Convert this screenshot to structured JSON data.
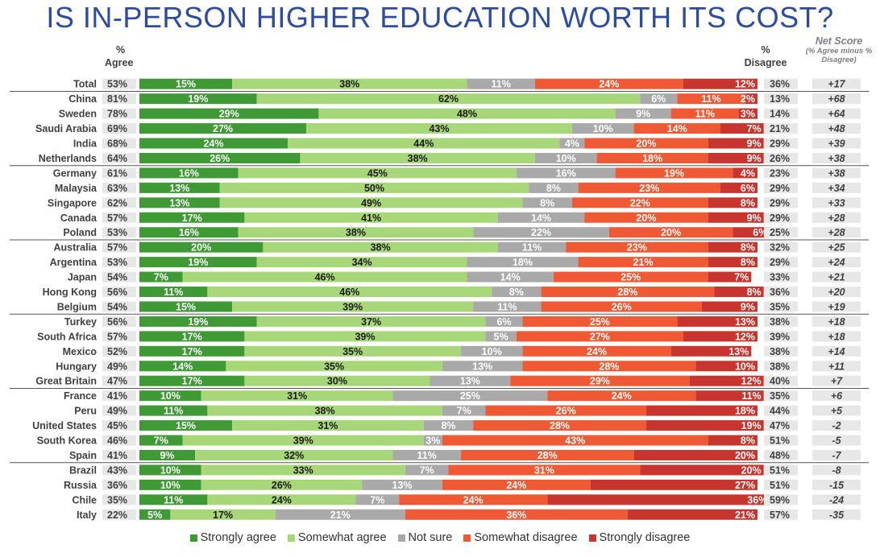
{
  "title": "IS IN-PERSON HIGHER EDUCATION WORTH ITS COST?",
  "headers": {
    "agree_pct": "%",
    "agree_word": "Agree",
    "disagree_pct": "%",
    "disagree_word": "Disagree",
    "net_title": "Net Score",
    "net_sub": "(% Agree minus % Disagree)"
  },
  "chart_data": {
    "type": "bar",
    "stacked": true,
    "orientation": "horizontal",
    "xlim": [
      0,
      100
    ],
    "legend_position": "bottom",
    "series": [
      {
        "name": "Strongly agree",
        "color": "#3F9A36"
      },
      {
        "name": "Somewhat agree",
        "color": "#A8D77A"
      },
      {
        "name": "Not sure",
        "color": "#A9A9A9"
      },
      {
        "name": "Somewhat disagree",
        "color": "#EF5A34"
      },
      {
        "name": "Strongly disagree",
        "color": "#C8352E"
      }
    ],
    "rows": [
      {
        "country": "Total",
        "agree": "53%",
        "values": [
          15,
          38,
          11,
          24,
          12
        ],
        "labels": [
          "15%",
          "38%",
          "11%",
          "24%",
          "12%"
        ],
        "disagree": "36%",
        "net": "+17"
      },
      {
        "country": "China",
        "agree": "81%",
        "values": [
          19,
          62,
          6,
          11,
          2
        ],
        "labels": [
          "19%",
          "62%",
          "6%",
          "11%",
          "2%"
        ],
        "disagree": "13%",
        "net": "+68"
      },
      {
        "country": "Sweden",
        "agree": "78%",
        "values": [
          29,
          48,
          9,
          11,
          3
        ],
        "labels": [
          "29%",
          "48%",
          "9%",
          "11%",
          "3%"
        ],
        "disagree": "14%",
        "net": "+64"
      },
      {
        "country": "Saudi Arabia",
        "agree": "69%",
        "values": [
          27,
          43,
          10,
          14,
          7
        ],
        "labels": [
          "27%",
          "43%",
          "10%",
          "14%",
          "7%"
        ],
        "disagree": "21%",
        "net": "+48"
      },
      {
        "country": "India",
        "agree": "68%",
        "values": [
          24,
          44,
          4,
          20,
          9
        ],
        "labels": [
          "24%",
          "44%",
          "4%",
          "20%",
          "9%"
        ],
        "disagree": "29%",
        "net": "+39"
      },
      {
        "country": "Netherlands",
        "agree": "64%",
        "values": [
          26,
          38,
          10,
          18,
          9
        ],
        "labels": [
          "26%",
          "38%",
          "10%",
          "18%",
          "9%"
        ],
        "disagree": "26%",
        "net": "+38"
      },
      {
        "country": "Germany",
        "agree": "61%",
        "values": [
          16,
          45,
          16,
          19,
          4
        ],
        "labels": [
          "16%",
          "45%",
          "16%",
          "19%",
          "4%"
        ],
        "disagree": "23%",
        "net": "+38"
      },
      {
        "country": "Malaysia",
        "agree": "63%",
        "values": [
          13,
          50,
          8,
          23,
          6
        ],
        "labels": [
          "13%",
          "50%",
          "8%",
          "23%",
          "6%"
        ],
        "disagree": "29%",
        "net": "+34"
      },
      {
        "country": "Singapore",
        "agree": "62%",
        "values": [
          13,
          49,
          8,
          22,
          8
        ],
        "labels": [
          "13%",
          "49%",
          "8%",
          "22%",
          "8%"
        ],
        "disagree": "29%",
        "net": "+33"
      },
      {
        "country": "Canada",
        "agree": "57%",
        "values": [
          17,
          41,
          14,
          20,
          9
        ],
        "labels": [
          "17%",
          "41%",
          "14%",
          "20%",
          "9%"
        ],
        "disagree": "29%",
        "net": "+28"
      },
      {
        "country": "Poland",
        "agree": "53%",
        "values": [
          16,
          38,
          22,
          20,
          6
        ],
        "labels": [
          "16%",
          "38%",
          "22%",
          "20%",
          "6%"
        ],
        "disagree": "25%",
        "net": "+28"
      },
      {
        "country": "Australia",
        "agree": "57%",
        "values": [
          20,
          38,
          11,
          23,
          8
        ],
        "labels": [
          "20%",
          "38%",
          "11%",
          "23%",
          "8%"
        ],
        "disagree": "32%",
        "net": "+25"
      },
      {
        "country": "Argentina",
        "agree": "53%",
        "values": [
          19,
          34,
          18,
          21,
          8
        ],
        "labels": [
          "19%",
          "34%",
          "18%",
          "21%",
          "8%"
        ],
        "disagree": "29%",
        "net": "+24"
      },
      {
        "country": "Japan",
        "agree": "54%",
        "values": [
          7,
          46,
          14,
          25,
          7
        ],
        "labels": [
          "7%",
          "46%",
          "14%",
          "25%",
          "7%"
        ],
        "disagree": "33%",
        "net": "+21"
      },
      {
        "country": "Hong Kong",
        "agree": "56%",
        "values": [
          11,
          46,
          8,
          28,
          8
        ],
        "labels": [
          "11%",
          "46%",
          "8%",
          "28%",
          "8%"
        ],
        "disagree": "36%",
        "net": "+20"
      },
      {
        "country": "Belgium",
        "agree": "54%",
        "values": [
          15,
          39,
          11,
          26,
          9
        ],
        "labels": [
          "15%",
          "39%",
          "11%",
          "26%",
          "9%"
        ],
        "disagree": "35%",
        "net": "+19"
      },
      {
        "country": "Turkey",
        "agree": "56%",
        "values": [
          19,
          37,
          6,
          25,
          13
        ],
        "labels": [
          "19%",
          "37%",
          "6%",
          "25%",
          "13%"
        ],
        "disagree": "38%",
        "net": "+18"
      },
      {
        "country": "South Africa",
        "agree": "57%",
        "values": [
          17,
          39,
          5,
          27,
          12
        ],
        "labels": [
          "17%",
          "39%",
          "5%",
          "27%",
          "12%"
        ],
        "disagree": "39%",
        "net": "+18"
      },
      {
        "country": "Mexico",
        "agree": "52%",
        "values": [
          17,
          35,
          10,
          24,
          13
        ],
        "labels": [
          "17%",
          "35%",
          "10%",
          "24%",
          "13%"
        ],
        "disagree": "38%",
        "net": "+14"
      },
      {
        "country": "Hungary",
        "agree": "49%",
        "values": [
          14,
          35,
          13,
          28,
          10
        ],
        "labels": [
          "14%",
          "35%",
          "13%",
          "28%",
          "10%"
        ],
        "disagree": "38%",
        "net": "+11"
      },
      {
        "country": "Great Britain",
        "agree": "47%",
        "values": [
          17,
          30,
          13,
          29,
          12
        ],
        "labels": [
          "17%",
          "30%",
          "13%",
          "29%",
          "12%"
        ],
        "disagree": "40%",
        "net": "+7"
      },
      {
        "country": "France",
        "agree": "41%",
        "values": [
          10,
          31,
          25,
          24,
          11
        ],
        "labels": [
          "10%",
          "31%",
          "25%",
          "24%",
          "11%"
        ],
        "disagree": "35%",
        "net": "+6"
      },
      {
        "country": "Peru",
        "agree": "49%",
        "values": [
          11,
          38,
          7,
          26,
          18
        ],
        "labels": [
          "11%",
          "38%",
          "7%",
          "26%",
          "18%"
        ],
        "disagree": "44%",
        "net": "+5"
      },
      {
        "country": "United States",
        "agree": "45%",
        "values": [
          15,
          31,
          8,
          28,
          19
        ],
        "labels": [
          "15%",
          "31%",
          "8%",
          "28%",
          "19%"
        ],
        "disagree": "47%",
        "net": "-2"
      },
      {
        "country": "South Korea",
        "agree": "46%",
        "values": [
          7,
          39,
          3,
          43,
          8
        ],
        "labels": [
          "7%",
          "39%",
          "3%",
          "43%",
          "8%"
        ],
        "disagree": "51%",
        "net": "-5"
      },
      {
        "country": "Spain",
        "agree": "41%",
        "values": [
          9,
          32,
          11,
          28,
          20
        ],
        "labels": [
          "9%",
          "32%",
          "11%",
          "28%",
          "20%"
        ],
        "disagree": "48%",
        "net": "-7"
      },
      {
        "country": "Brazil",
        "agree": "43%",
        "values": [
          10,
          33,
          7,
          31,
          20
        ],
        "labels": [
          "10%",
          "33%",
          "7%",
          "31%",
          "20%"
        ],
        "disagree": "51%",
        "net": "-8"
      },
      {
        "country": "Russia",
        "agree": "36%",
        "values": [
          10,
          26,
          13,
          24,
          27
        ],
        "labels": [
          "10%",
          "26%",
          "13%",
          "24%",
          "27%"
        ],
        "disagree": "51%",
        "net": "-15"
      },
      {
        "country": "Chile",
        "agree": "35%",
        "values": [
          11,
          24,
          7,
          24,
          36
        ],
        "labels": [
          "11%",
          "24%",
          "7%",
          "24%",
          "36%"
        ],
        "disagree": "59%",
        "net": "-24"
      },
      {
        "country": "Italy",
        "agree": "22%",
        "values": [
          5,
          17,
          21,
          36,
          21
        ],
        "labels": [
          "5%",
          "17%",
          "21%",
          "36%",
          "21%"
        ],
        "disagree": "57%",
        "net": "-35"
      }
    ],
    "group_separators_after": [
      0,
      5,
      10,
      15,
      20,
      25
    ]
  }
}
